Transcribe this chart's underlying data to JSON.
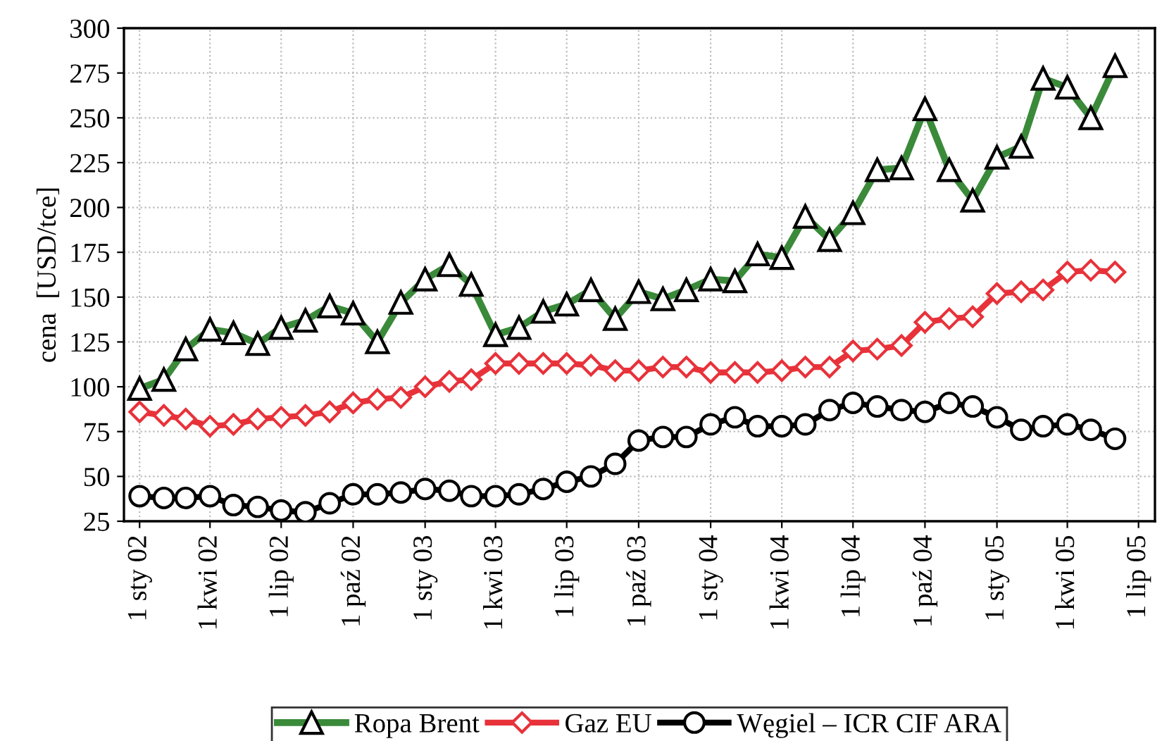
{
  "chart_data": {
    "type": "line",
    "ylabel": "cena  [USD/tce]",
    "x": [
      "2002-01",
      "2002-02",
      "2002-03",
      "2002-04",
      "2002-05",
      "2002-06",
      "2002-07",
      "2002-08",
      "2002-09",
      "2002-10",
      "2002-11",
      "2002-12",
      "2003-01",
      "2003-02",
      "2003-03",
      "2003-04",
      "2003-05",
      "2003-06",
      "2003-07",
      "2003-08",
      "2003-09",
      "2003-10",
      "2003-11",
      "2003-12",
      "2004-01",
      "2004-02",
      "2004-03",
      "2004-04",
      "2004-05",
      "2004-06",
      "2004-07",
      "2004-08",
      "2004-09",
      "2004-10",
      "2004-11",
      "2004-12",
      "2005-01",
      "2005-02",
      "2005-03",
      "2005-04",
      "2005-05",
      "2005-06"
    ],
    "series": [
      {
        "name": "Ropa Brent",
        "color": "#3a8a3a",
        "marker": "triangle",
        "values": [
          99,
          104,
          121,
          132,
          130,
          124,
          133,
          137,
          145,
          141,
          125,
          147,
          160,
          168,
          157,
          129,
          133,
          142,
          146,
          154,
          138,
          153,
          149,
          154,
          160,
          159,
          174,
          172,
          195,
          182,
          197,
          221,
          222,
          255,
          221,
          204,
          228,
          234,
          272,
          267,
          250,
          279
        ]
      },
      {
        "name": "Gaz EU",
        "color": "#e8323a",
        "marker": "diamond",
        "values": [
          86,
          84,
          82,
          78,
          79,
          82,
          83,
          84,
          86,
          91,
          93,
          94,
          100,
          103,
          104,
          113,
          113,
          113,
          113,
          112,
          109,
          109,
          111,
          111,
          108,
          108,
          108,
          109,
          111,
          111,
          120,
          121,
          123,
          136,
          138,
          139,
          152,
          153,
          154,
          164,
          165,
          164
        ]
      },
      {
        "name": "Węgiel – ICR CIF ARA",
        "color": "#000000",
        "marker": "circle",
        "values": [
          39,
          38,
          38,
          39,
          34,
          33,
          31,
          30,
          35,
          40,
          40,
          41,
          43,
          42,
          39,
          39,
          40,
          43,
          47,
          50,
          57,
          70,
          72,
          72,
          79,
          83,
          78,
          78,
          79,
          87,
          91,
          89,
          87,
          86,
          91,
          89,
          83,
          76,
          78,
          79,
          76,
          71
        ]
      }
    ],
    "xlim": [
      "2001-12-12",
      "2005-07-22"
    ],
    "xticks": [
      {
        "value": "2002-01-01",
        "label": "1 sty 02"
      },
      {
        "value": "2002-04-01",
        "label": "1 kwi 02"
      },
      {
        "value": "2002-07-01",
        "label": "1 lip 02"
      },
      {
        "value": "2002-10-01",
        "label": "1 paź 02"
      },
      {
        "value": "2003-01-01",
        "label": "1 sty 03"
      },
      {
        "value": "2003-04-01",
        "label": "1 kwi 03"
      },
      {
        "value": "2003-07-01",
        "label": "1 lip 03"
      },
      {
        "value": "2003-10-01",
        "label": "1 paź 03"
      },
      {
        "value": "2004-01-01",
        "label": "1 sty 04"
      },
      {
        "value": "2004-04-01",
        "label": "1 kwi 04"
      },
      {
        "value": "2004-07-01",
        "label": "1 lip 04"
      },
      {
        "value": "2004-10-01",
        "label": "1 paź 04"
      },
      {
        "value": "2005-01-01",
        "label": "1 sty 05"
      },
      {
        "value": "2005-04-01",
        "label": "1 kwi 05"
      },
      {
        "value": "2005-07-01",
        "label": "1 lip 05"
      }
    ],
    "ylim": [
      25,
      300
    ],
    "yticks": [
      25,
      50,
      75,
      100,
      125,
      150,
      175,
      200,
      225,
      250,
      275,
      300
    ],
    "grid": true,
    "legend": "bottom",
    "line_style": "solid"
  }
}
